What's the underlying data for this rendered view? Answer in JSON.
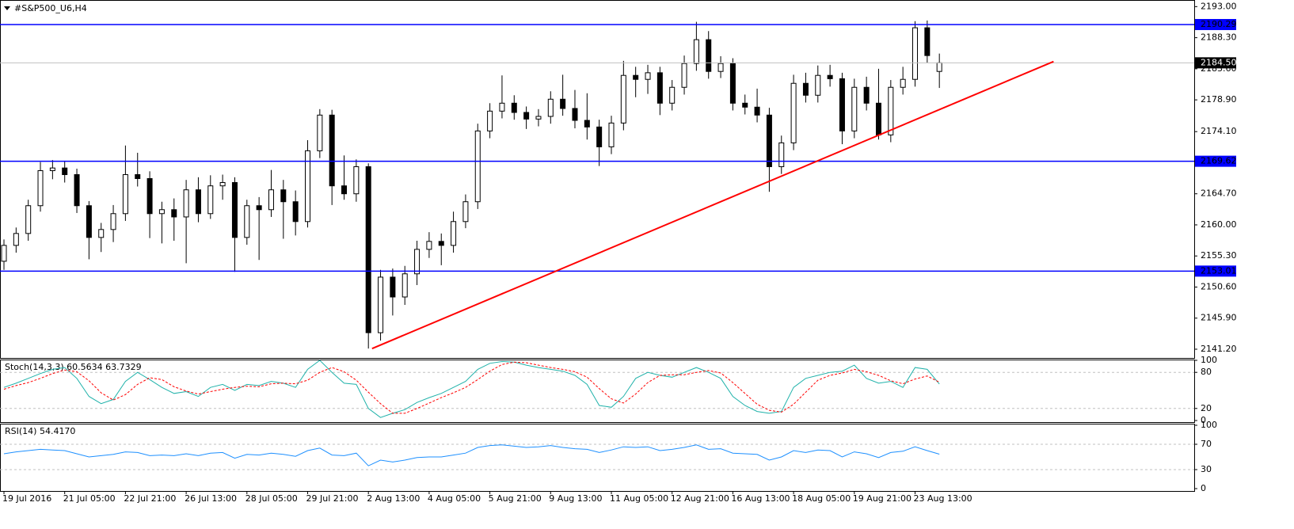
{
  "chart_data": {
    "type": "candlestick",
    "title": "#S&P500_U6,H4",
    "x": [
      "19 Jul 2016",
      null,
      null,
      null,
      null,
      "21 Jul 05:00",
      null,
      null,
      null,
      null,
      "22 Jul 21:00",
      null,
      null,
      null,
      null,
      "26 Jul 13:00",
      null,
      null,
      null,
      null,
      "28 Jul 05:00",
      null,
      null,
      null,
      null,
      "29 Jul 21:00",
      null,
      null,
      null,
      null,
      "2 Aug 13:00",
      null,
      null,
      null,
      null,
      "4 Aug 05:00",
      null,
      null,
      null,
      null,
      "5 Aug 21:00",
      null,
      null,
      null,
      null,
      "9 Aug 13:00",
      null,
      null,
      null,
      null,
      "11 Aug 05:00",
      null,
      null,
      null,
      null,
      "12 Aug 21:00",
      null,
      null,
      null,
      null,
      "16 Aug 13:00",
      null,
      null,
      null,
      null,
      "18 Aug 05:00",
      null,
      null,
      null,
      null,
      "19 Aug 21:00",
      null,
      null,
      null,
      null,
      "23 Aug 13:00",
      null,
      null
    ],
    "open": [
      2154.5,
      2156.9,
      2158.7,
      2162.9,
      2168.2,
      2168.6,
      2167.6,
      2162.9,
      2158.1,
      2159.3,
      2161.7,
      2167.6,
      2167.0,
      2161.7,
      2162.3,
      2161.2,
      2165.3,
      2161.7,
      2165.9,
      2166.4,
      2158.1,
      2162.9,
      2162.3,
      2165.3,
      2163.5,
      2160.5,
      2171.2,
      2176.6,
      2165.9,
      2164.7,
      2168.8,
      2143.7,
      2152.1,
      2149.1,
      2152.6,
      2156.3,
      2157.5,
      2156.9,
      2160.5,
      2163.5,
      2174.2,
      2177.2,
      2178.4,
      2177.0,
      2176.0,
      2176.4,
      2179.0,
      2177.6,
      2175.8,
      2174.8,
      2171.8,
      2175.4,
      2182.6,
      2182.0,
      2183.0,
      2178.4,
      2180.8,
      2184.4,
      2188.0,
      2183.2,
      2184.4,
      2178.4,
      2177.8,
      2176.6,
      2168.8,
      2172.4,
      2181.4,
      2179.6,
      2182.6,
      2182.1,
      2174.2,
      2180.8,
      2178.4,
      2173.6,
      2180.8,
      2182.0,
      2189.8,
      2183.2
    ],
    "high": [
      2157.8,
      2159.6,
      2163.8,
      2169.5,
      2169.8,
      2169.7,
      2168.5,
      2163.6,
      2160.3,
      2163.0,
      2172.0,
      2170.9,
      2168.1,
      2163.5,
      2164.0,
      2166.8,
      2167.2,
      2167.5,
      2167.6,
      2167.2,
      2163.8,
      2164.2,
      2168.3,
      2166.8,
      2165.2,
      2172.8,
      2177.5,
      2177.4,
      2170.5,
      2169.9,
      2169.3,
      2153.2,
      2153.4,
      2153.8,
      2157.6,
      2158.9,
      2158.7,
      2162.0,
      2164.6,
      2175.3,
      2178.4,
      2182.6,
      2179.6,
      2177.9,
      2177.5,
      2180.2,
      2182.7,
      2180.4,
      2179.9,
      2175.9,
      2176.5,
      2184.8,
      2183.9,
      2184.2,
      2183.9,
      2181.9,
      2185.6,
      2190.7,
      2189.3,
      2185.5,
      2185.2,
      2179.7,
      2180.6,
      2177.7,
      2173.5,
      2182.7,
      2183.0,
      2184.1,
      2184.2,
      2183.0,
      2182.1,
      2182.4,
      2183.6,
      2181.9,
      2183.9,
      2190.8,
      2190.9,
      2185.9
    ],
    "low": [
      2153.2,
      2155.8,
      2157.6,
      2162.0,
      2166.9,
      2166.4,
      2161.8,
      2154.8,
      2155.9,
      2157.4,
      2160.6,
      2165.8,
      2158.0,
      2157.2,
      2157.6,
      2154.2,
      2160.4,
      2160.9,
      2163.8,
      2152.9,
      2157.0,
      2154.7,
      2161.2,
      2157.9,
      2158.4,
      2159.6,
      2170.1,
      2163.0,
      2163.8,
      2163.5,
      2141.3,
      2142.5,
      2146.3,
      2147.9,
      2150.9,
      2155.0,
      2153.9,
      2155.8,
      2159.5,
      2162.4,
      2173.1,
      2176.1,
      2175.9,
      2174.5,
      2174.9,
      2175.3,
      2176.5,
      2174.6,
      2172.9,
      2168.9,
      2170.7,
      2174.3,
      2179.3,
      2179.8,
      2176.6,
      2177.3,
      2179.7,
      2183.3,
      2182.1,
      2182.2,
      2177.3,
      2176.7,
      2175.5,
      2165.0,
      2167.7,
      2171.3,
      2178.5,
      2178.5,
      2180.9,
      2172.2,
      2173.1,
      2177.3,
      2172.9,
      2172.5,
      2179.7,
      2180.9,
      2184.5,
      2180.7
    ],
    "close": [
      2156.9,
      2158.7,
      2162.9,
      2168.2,
      2168.6,
      2167.6,
      2162.9,
      2158.1,
      2159.3,
      2161.7,
      2167.6,
      2167.0,
      2161.7,
      2162.3,
      2161.2,
      2165.3,
      2161.7,
      2165.9,
      2166.4,
      2158.1,
      2162.9,
      2162.3,
      2165.3,
      2163.5,
      2160.5,
      2171.2,
      2176.6,
      2165.9,
      2164.7,
      2168.8,
      2143.7,
      2152.1,
      2149.1,
      2152.6,
      2156.3,
      2157.5,
      2156.9,
      2160.5,
      2163.5,
      2174.2,
      2177.2,
      2178.4,
      2177.0,
      2176.0,
      2176.4,
      2179.0,
      2177.6,
      2175.8,
      2174.8,
      2171.8,
      2175.4,
      2182.6,
      2182.0,
      2183.0,
      2178.4,
      2180.8,
      2184.4,
      2188.0,
      2183.2,
      2184.4,
      2178.4,
      2177.8,
      2176.6,
      2168.8,
      2172.4,
      2181.4,
      2179.6,
      2182.6,
      2182.1,
      2174.2,
      2180.8,
      2178.4,
      2173.6,
      2180.8,
      2182.0,
      2189.8,
      2185.6,
      2184.5
    ],
    "up_color": "#ffffff",
    "down_color": "#000000",
    "ylim": [
      2140.0,
      2194.0
    ],
    "yticks": [
      {
        "value": 2193,
        "label": "2193.00"
      },
      {
        "value": 2188.3,
        "label": "2188.30"
      },
      {
        "value": 2183.6,
        "label": "2183.60"
      },
      {
        "value": 2178.9,
        "label": "2178.90"
      },
      {
        "value": 2174.1,
        "label": "2174.10"
      },
      {
        "value": 2164.7,
        "label": "2164.70"
      },
      {
        "value": 2160,
        "label": "2160.00"
      },
      {
        "value": 2155.3,
        "label": "2155.30"
      },
      {
        "value": 2150.6,
        "label": "2150.60"
      },
      {
        "value": 2145.9,
        "label": "2145.90"
      },
      {
        "value": 2141.2,
        "label": "2141.20"
      }
    ],
    "hlines": [
      {
        "value": 2190.29,
        "color": "#0000ff"
      },
      {
        "value": 2184.5,
        "label": "2184.50",
        "color": "#c0c0c0",
        "box": "#000000"
      },
      {
        "value": 2169.62,
        "color": "#0000ff"
      },
      {
        "value": 2153.01,
        "color": "#0000ff"
      }
    ],
    "trendline": {
      "start": [
        30.3,
        2141.3
      ],
      "end": [
        86.4,
        2184.7
      ],
      "color": "#ff0000"
    },
    "indicators": [
      {
        "title": "Stoch(14,3,3) 60.5634 63.7329",
        "ylim": [
          0,
          100
        ],
        "yticks": [
          0,
          20,
          80,
          100
        ],
        "levels": [
          20,
          80
        ],
        "series": [
          {
            "color": "#20b2aa",
            "dash": false,
            "values": [
              55,
              62,
              70,
              78,
              85,
              88,
              70,
              40,
              28,
              35,
              65,
              80,
              68,
              55,
              45,
              48,
              40,
              55,
              60,
              50,
              60,
              58,
              65,
              62,
              55,
              85,
              100,
              80,
              62,
              60,
              20,
              5,
              12,
              18,
              30,
              38,
              45,
              55,
              65,
              85,
              95,
              98,
              97,
              92,
              88,
              85,
              82,
              75,
              60,
              25,
              22,
              40,
              70,
              80,
              75,
              72,
              80,
              88,
              80,
              70,
              40,
              25,
              15,
              12,
              15,
              55,
              70,
              75,
              80,
              82,
              92,
              70,
              62,
              65,
              55,
              88,
              85,
              60.6
            ]
          },
          {
            "color": "#ff0000",
            "dash": true,
            "values": [
              52,
              58,
              63,
              70,
              78,
              84,
              81,
              66,
              46,
              34,
              43,
              60,
              71,
              68,
              56,
              49,
              44,
              48,
              52,
              55,
              57,
              56,
              61,
              62,
              61,
              67,
              80,
              88,
              81,
              67,
              47,
              28,
              12,
              12,
              20,
              29,
              38,
              46,
              55,
              68,
              82,
              93,
              97,
              96,
              92,
              88,
              85,
              81,
              72,
              53,
              36,
              29,
              44,
              63,
              75,
              76,
              76,
              80,
              83,
              79,
              63,
              45,
              27,
              17,
              14,
              27,
              47,
              67,
              75,
              79,
              85,
              81,
              75,
              66,
              61,
              69,
              74,
              63.7
            ]
          }
        ]
      },
      {
        "title": "RSI(14) 54.4170",
        "ylim": [
          0,
          100
        ],
        "yticks": [
          0,
          30,
          70,
          100
        ],
        "levels": [
          30,
          70
        ],
        "series": [
          {
            "color": "#1e90ff",
            "dash": false,
            "values": [
              55,
              58,
              60,
              62,
              61,
              60,
              55,
              50,
              52,
              54,
              58,
              57,
              52,
              53,
              52,
              55,
              52,
              56,
              57,
              48,
              54,
              53,
              56,
              54,
              51,
              60,
              64,
              53,
              52,
              56,
              36,
              45,
              42,
              45,
              49,
              50,
              50,
              53,
              56,
              65,
              68,
              69,
              67,
              65,
              66,
              68,
              65,
              63,
              62,
              57,
              61,
              66,
              65,
              66,
              60,
              62,
              65,
              69,
              62,
              63,
              56,
              55,
              54,
              45,
              50,
              60,
              57,
              61,
              60,
              50,
              58,
              55,
              49,
              57,
              59,
              66,
              60,
              54.4
            ]
          }
        ]
      }
    ]
  }
}
